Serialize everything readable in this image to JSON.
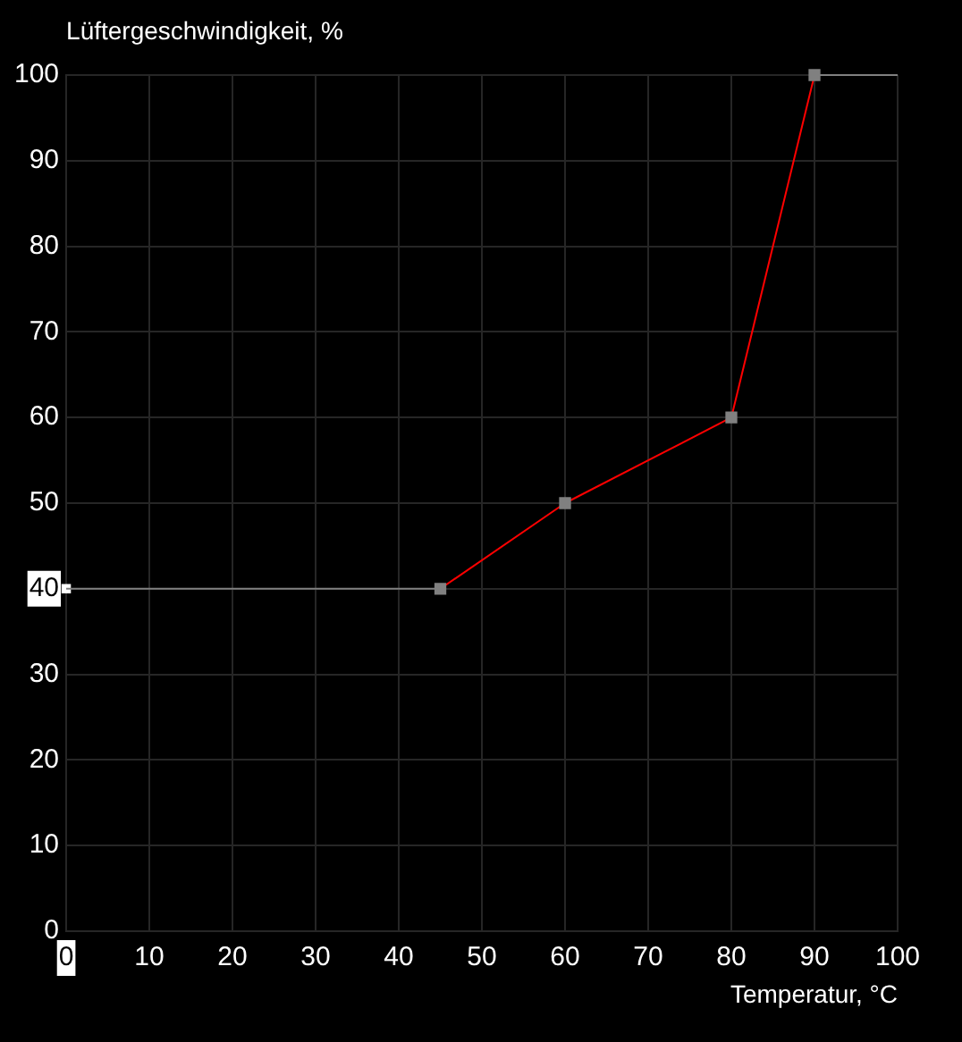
{
  "chart_data": {
    "type": "line",
    "title": "Lüftergeschwindigkeit, %",
    "xlabel": "Temperatur, °C",
    "xlim": [
      0,
      100
    ],
    "xticks": [
      0,
      10,
      20,
      30,
      40,
      50,
      60,
      70,
      80,
      90,
      100
    ],
    "ylim": [
      0,
      100
    ],
    "yticks": [
      0,
      10,
      20,
      30,
      40,
      50,
      60,
      70,
      80,
      90,
      100
    ],
    "grid": true,
    "legend": false,
    "series": [
      {
        "x": [
          0,
          45
        ],
        "values": [
          40,
          40
        ],
        "color": "#808080"
      },
      {
        "x": [
          45,
          60,
          80,
          90
        ],
        "values": [
          40,
          50,
          60,
          100
        ],
        "color": "#ff0000",
        "colors": [
          "#808080",
          "#808080",
          "#808080",
          "#808080"
        ],
        "marker": "square"
      },
      {
        "x": [
          90,
          100
        ],
        "values": [
          100,
          100
        ],
        "color": "#808080"
      },
      {
        "type": "scatter",
        "x": [
          0
        ],
        "values": [
          40
        ],
        "color": "#ffffff",
        "marker": "square"
      }
    ]
  }
}
